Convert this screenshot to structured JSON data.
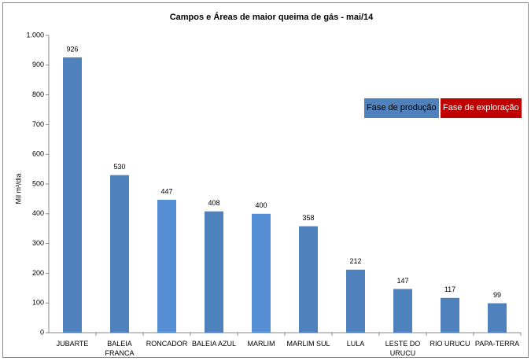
{
  "chart_data": {
    "type": "bar",
    "title": "Campos e Áreas de maior queima de gás - mai/14",
    "y_label": "Mil m³/dia",
    "categories": [
      "JUBARTE",
      "BALEIA FRANCA",
      "RONCADOR",
      "BALEIA AZUL",
      "MARLIM",
      "MARLIM SUL",
      "LULA",
      "LESTE DO URUCU",
      "RIO URUCU",
      "PAPA-TERRA"
    ],
    "values": [
      926,
      530,
      447,
      408,
      400,
      358,
      212,
      147,
      117,
      99
    ],
    "colors": [
      "#4f81bd",
      "#4f81bd",
      "#558ed5",
      "#4f81bd",
      "#558ed5",
      "#4f81bd",
      "#4f81bd",
      "#4f81bd",
      "#4f81bd",
      "#4f81bd"
    ],
    "ylim": [
      0,
      1000
    ],
    "yticks": [
      0,
      100,
      200,
      300,
      400,
      500,
      600,
      700,
      800,
      900,
      {
        "value": 1000,
        "label": "1.000"
      }
    ],
    "grid": false,
    "legend": [
      {
        "name": "Fase de produção",
        "color": "#4f81bd"
      },
      {
        "name": "Fase de exploração",
        "color": "#c00000"
      }
    ]
  }
}
